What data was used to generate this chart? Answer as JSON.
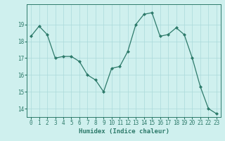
{
  "x": [
    0,
    1,
    2,
    3,
    4,
    5,
    6,
    7,
    8,
    9,
    10,
    11,
    12,
    13,
    14,
    15,
    16,
    17,
    18,
    19,
    20,
    21,
    22,
    23
  ],
  "y": [
    18.3,
    18.9,
    18.4,
    17.0,
    17.1,
    17.1,
    16.8,
    16.0,
    15.7,
    15.0,
    16.4,
    16.5,
    17.4,
    19.0,
    19.6,
    19.7,
    18.3,
    18.4,
    18.8,
    18.4,
    17.0,
    15.3,
    14.0,
    13.7
  ],
  "line_color": "#2d7a6a",
  "marker": "D",
  "marker_size": 2.0,
  "background_color": "#cff0ee",
  "grid_color": "#aadada",
  "xlabel": "Humidex (Indice chaleur)",
  "ylim": [
    13.5,
    20.2
  ],
  "xlim": [
    -0.5,
    23.5
  ],
  "yticks": [
    14,
    15,
    16,
    17,
    18,
    19
  ],
  "xticks": [
    0,
    1,
    2,
    3,
    4,
    5,
    6,
    7,
    8,
    9,
    10,
    11,
    12,
    13,
    14,
    15,
    16,
    17,
    18,
    19,
    20,
    21,
    22,
    23
  ],
  "tick_color": "#2d7a6a",
  "xlabel_fontsize": 6.5,
  "tick_fontsize": 5.5,
  "linewidth": 0.9
}
